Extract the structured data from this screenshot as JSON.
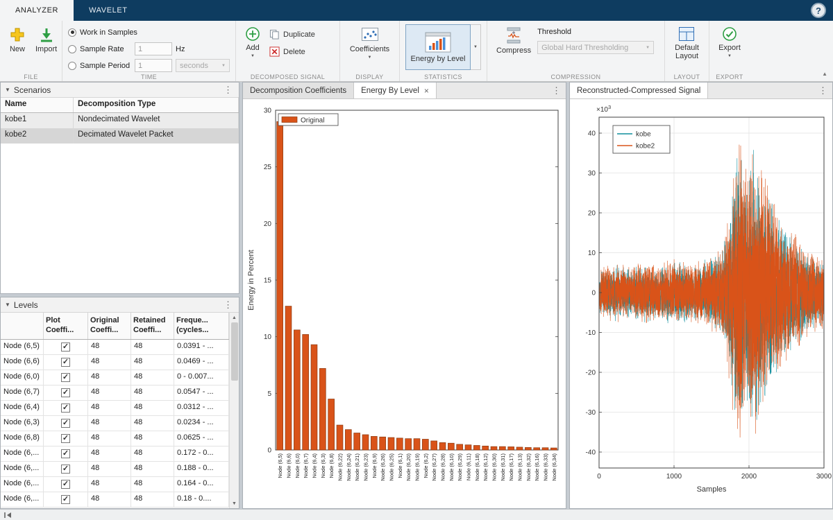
{
  "tabbar": {
    "tabs": [
      {
        "label": "ANALYZER"
      },
      {
        "label": "WAVELET"
      }
    ],
    "help_label": "?"
  },
  "toolbar": {
    "file_label": "FILE",
    "new_label": "New",
    "import_label": "Import",
    "time_label": "TIME",
    "work_in_samples": "Work in Samples",
    "sample_rate": "Sample Rate",
    "sample_rate_value": "1",
    "hz_label": "Hz",
    "sample_period": "Sample Period",
    "sample_period_value": "1",
    "seconds_label": "seconds",
    "decomposed_label": "DECOMPOSED SIGNAL",
    "add_label": "Add",
    "duplicate_label": "Duplicate",
    "delete_label": "Delete",
    "display_label": "DISPLAY",
    "coefficients_label": "Coefficients",
    "statistics_label": "STATISTICS",
    "energy_by_level_label": "Energy by Level",
    "compression_label": "COMPRESSION",
    "compress_label": "Compress",
    "threshold_label": "Threshold",
    "threshold_method": "Global Hard Thresholding",
    "layout_label": "LAYOUT",
    "default_layout_line1": "Default",
    "default_layout_line2": "Layout",
    "export_label": "EXPORT",
    "export_button_label": "Export"
  },
  "scenarios": {
    "title": "Scenarios",
    "columns": [
      "Name",
      "Decomposition Type"
    ],
    "rows": [
      {
        "name": "kobe1",
        "type": "Nondecimated Wavelet",
        "selected": false
      },
      {
        "name": "kobe2",
        "type": "Decimated Wavelet Packet",
        "selected": true
      }
    ]
  },
  "levels": {
    "title": "Levels",
    "columns": [
      [
        "",
        ""
      ],
      [
        "Plot",
        "Coeffi..."
      ],
      [
        "Original",
        "Coeffi..."
      ],
      [
        "Retained",
        "Coeffi..."
      ],
      [
        "Freque...",
        "(cycles..."
      ]
    ],
    "rows": [
      {
        "node": "Node (6,5)",
        "plot": true,
        "original": "48",
        "retained": "48",
        "freq": "0.0391 - ..."
      },
      {
        "node": "Node (6,6)",
        "plot": true,
        "original": "48",
        "retained": "48",
        "freq": "0.0469 - ..."
      },
      {
        "node": "Node (6,0)",
        "plot": true,
        "original": "48",
        "retained": "48",
        "freq": "0 - 0.007..."
      },
      {
        "node": "Node (6,7)",
        "plot": true,
        "original": "48",
        "retained": "48",
        "freq": "0.0547 - ..."
      },
      {
        "node": "Node (6,4)",
        "plot": true,
        "original": "48",
        "retained": "48",
        "freq": "0.0312 - ..."
      },
      {
        "node": "Node (6,3)",
        "plot": true,
        "original": "48",
        "retained": "48",
        "freq": "0.0234 - ..."
      },
      {
        "node": "Node (6,8)",
        "plot": true,
        "original": "48",
        "retained": "48",
        "freq": "0.0625 - ..."
      },
      {
        "node": "Node (6,...",
        "plot": true,
        "original": "48",
        "retained": "48",
        "freq": "0.172 - 0..."
      },
      {
        "node": "Node (6,...",
        "plot": true,
        "original": "48",
        "retained": "48",
        "freq": "0.188 - 0..."
      },
      {
        "node": "Node (6,...",
        "plot": true,
        "original": "48",
        "retained": "48",
        "freq": "0.164 - 0..."
      },
      {
        "node": "Node (6,...",
        "plot": true,
        "original": "48",
        "retained": "48",
        "freq": "0.18 - 0...."
      }
    ]
  },
  "doc_tabs": {
    "middle": [
      {
        "label": "Decomposition Coefficients",
        "active": false
      },
      {
        "label": "Energy By Level",
        "active": true,
        "close": "×"
      }
    ],
    "right": [
      {
        "label": "Reconstructed-Compressed Signal",
        "active": true
      }
    ]
  },
  "chart_data": [
    {
      "type": "bar",
      "title": "",
      "ylabel": "Energy in Percent",
      "ylim": [
        0,
        30
      ],
      "yticks": [
        0,
        5,
        10,
        15,
        20,
        25,
        30
      ],
      "legend": [
        "Original"
      ],
      "legend_position": "upper-left",
      "grid": false,
      "bar_color": "#d95319",
      "bar_edge": "#8a3a10",
      "categories": [
        "Node (6,5)",
        "Node (6,6)",
        "Node (6,0)",
        "Node (6,7)",
        "Node (6,4)",
        "Node (6,3)",
        "Node (6,8)",
        "Node (6,22)",
        "Node (6,24)",
        "Node (6,21)",
        "Node (6,23)",
        "Node (6,9)",
        "Node (6,26)",
        "Node (6,25)",
        "Node (6,1)",
        "Node (6,20)",
        "Node (6,19)",
        "Node (6,2)",
        "Node (6,27)",
        "Node (6,28)",
        "Node (6,10)",
        "Node (6,29)",
        "Node (6,11)",
        "Node (6,18)",
        "Node (6,12)",
        "Node (6,30)",
        "Node (6,31)",
        "Node (6,17)",
        "Node (6,13)",
        "Node (6,32)",
        "Node (6,16)",
        "Node (6,33)",
        "Node (6,34)"
      ],
      "values": [
        29.0,
        12.7,
        10.6,
        10.2,
        9.3,
        7.2,
        4.5,
        2.2,
        1.8,
        1.5,
        1.35,
        1.2,
        1.15,
        1.1,
        1.05,
        1.0,
        1.0,
        0.95,
        0.8,
        0.65,
        0.6,
        0.5,
        0.45,
        0.4,
        0.35,
        0.3,
        0.3,
        0.28,
        0.25,
        0.22,
        0.2,
        0.2,
        0.18
      ]
    },
    {
      "type": "line",
      "xlabel": "Samples",
      "xlim": [
        0,
        3000
      ],
      "xticks": [
        0,
        1000,
        2000,
        3000
      ],
      "ylim": [
        -44000,
        44000
      ],
      "ytick_values_thousands": [
        -40,
        -30,
        -20,
        -10,
        0,
        10,
        20,
        30,
        40
      ],
      "y_exponent_base": "×10",
      "y_exponent": "3",
      "grid": true,
      "legend_position": "upper-left",
      "series": [
        {
          "name": "kobe",
          "color": "#0f8d9c"
        },
        {
          "name": "kobe2",
          "color": "#d95319"
        }
      ],
      "signal_envelope": [
        [
          0,
          6500
        ],
        [
          200,
          8000
        ],
        [
          400,
          7200
        ],
        [
          600,
          8600
        ],
        [
          800,
          7600
        ],
        [
          1000,
          9200
        ],
        [
          1200,
          8200
        ],
        [
          1400,
          9600
        ],
        [
          1550,
          10500
        ],
        [
          1650,
          13000
        ],
        [
          1720,
          20000
        ],
        [
          1800,
          34000
        ],
        [
          1870,
          43000
        ],
        [
          1950,
          36000
        ],
        [
          2050,
          40000
        ],
        [
          2150,
          34000
        ],
        [
          2250,
          30000
        ],
        [
          2350,
          25000
        ],
        [
          2450,
          21000
        ],
        [
          2550,
          17000
        ],
        [
          2700,
          13500
        ],
        [
          2850,
          11000
        ],
        [
          3000,
          9500
        ]
      ],
      "n_points": 3000
    }
  ]
}
